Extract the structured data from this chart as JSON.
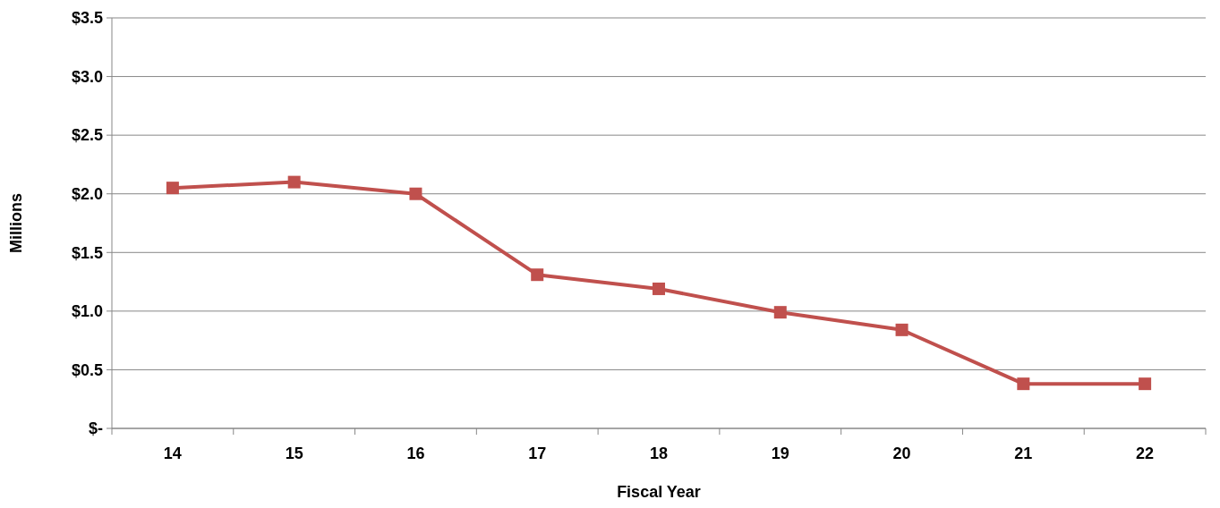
{
  "chart_data": {
    "type": "line",
    "xlabel": "Fiscal Year",
    "ylabel": "Millions",
    "categories": [
      "14",
      "15",
      "16",
      "17",
      "18",
      "19",
      "20",
      "21",
      "22"
    ],
    "series": [
      {
        "color": "#c0504d",
        "values": [
          2.05,
          2.1,
          2.0,
          1.31,
          1.19,
          0.99,
          0.84,
          0.38,
          0.38
        ]
      }
    ],
    "ylim": [
      0,
      3.5
    ],
    "yticks": [
      {
        "value": 0,
        "label": "$-"
      },
      {
        "value": 0.5,
        "label": "$0.5"
      },
      {
        "value": 1,
        "label": "$1.0"
      },
      {
        "value": 1.5,
        "label": "$1.5"
      },
      {
        "value": 2,
        "label": "$2.0"
      },
      {
        "value": 2.5,
        "label": "$2.5"
      },
      {
        "value": 3,
        "label": "$3.0"
      },
      {
        "value": 3.5,
        "label": "$3.5"
      }
    ],
    "grid": "y",
    "marker": "square",
    "line_style": "solid"
  }
}
